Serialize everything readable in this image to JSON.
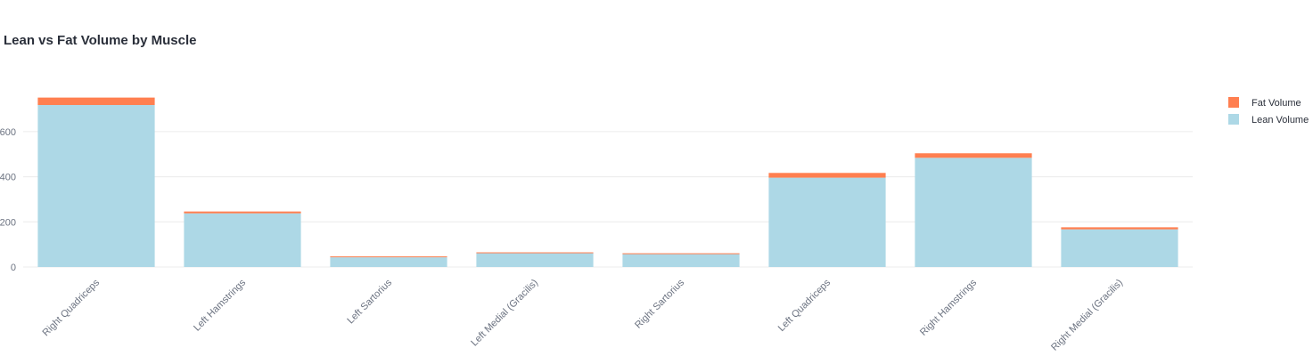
{
  "chart_data": {
    "type": "bar",
    "stacked": true,
    "title": "Lean vs Fat Volume by Muscle",
    "xlabel": "",
    "ylabel": "",
    "ylim": [
      0,
      830
    ],
    "yticks": [
      0,
      200,
      400,
      600
    ],
    "ytick_labels": [
      "0",
      "200",
      "400",
      "600"
    ],
    "grid": true,
    "legend_position": "top-right",
    "categories": [
      "Right Quadriceps",
      "Left Hamstrings",
      "Left Sartorius",
      "Left Medial (Gracilis)",
      "Right Sartorius",
      "Left Quadriceps",
      "Right Hamstrings",
      "Right Medial (Gracilis)"
    ],
    "series": [
      {
        "name": "Lean Volume",
        "color": "#add8e6",
        "values": [
          718,
          238,
          43,
          61,
          57,
          396,
          484,
          167
        ]
      },
      {
        "name": "Fat Volume",
        "color": "#ff7f50",
        "values": [
          33,
          8,
          4,
          4,
          4,
          21,
          20,
          9
        ]
      }
    ],
    "legend": [
      {
        "name": "Fat Volume",
        "color": "#ff7f50"
      },
      {
        "name": "Lean Volume",
        "color": "#add8e6"
      }
    ]
  }
}
